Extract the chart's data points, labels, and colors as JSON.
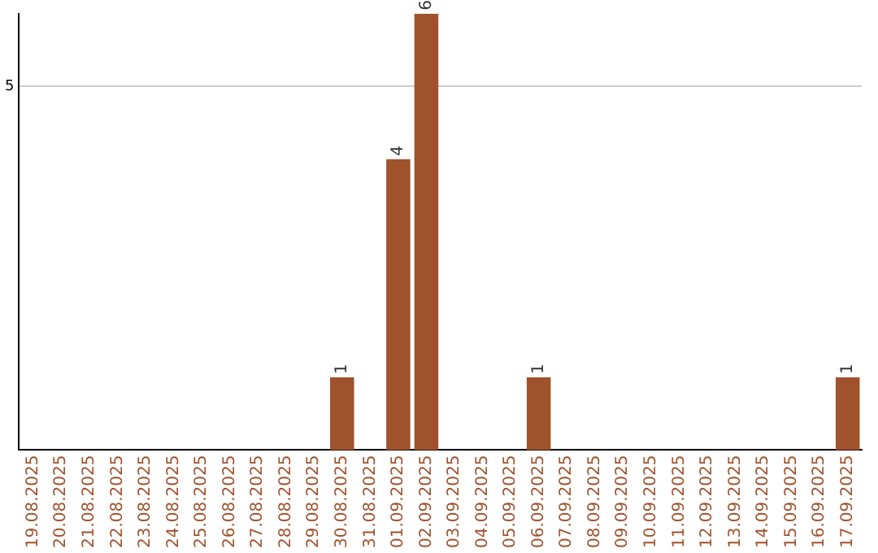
{
  "chart_data": {
    "type": "bar",
    "categories": [
      "19.08.2025",
      "20.08.2025",
      "21.08.2025",
      "22.08.2025",
      "23.08.2025",
      "24.08.2025",
      "25.08.2025",
      "26.08.2025",
      "27.08.2025",
      "28.08.2025",
      "29.08.2025",
      "30.08.2025",
      "31.08.2025",
      "01.09.2025",
      "02.09.2025",
      "03.09.2025",
      "04.09.2025",
      "05.09.2025",
      "06.09.2025",
      "07.09.2025",
      "08.09.2025",
      "09.09.2025",
      "10.09.2025",
      "11.09.2025",
      "12.09.2025",
      "13.09.2025",
      "14.09.2025",
      "15.09.2025",
      "16.09.2025",
      "17.09.2025"
    ],
    "values": [
      0,
      0,
      0,
      0,
      0,
      0,
      0,
      0,
      0,
      0,
      0,
      1,
      0,
      4,
      6,
      0,
      0,
      0,
      1,
      0,
      0,
      0,
      0,
      0,
      0,
      0,
      0,
      0,
      0,
      1
    ],
    "color": "#a0522d",
    "value_labels": [
      null,
      null,
      null,
      null,
      null,
      null,
      null,
      null,
      null,
      null,
      null,
      "1",
      null,
      "4",
      "6",
      null,
      null,
      null,
      "1",
      null,
      null,
      null,
      null,
      null,
      null,
      null,
      null,
      null,
      null,
      "1"
    ],
    "ylim": [
      0,
      6
    ],
    "yticks": [
      5
    ],
    "grid": "y",
    "legend": false
  }
}
